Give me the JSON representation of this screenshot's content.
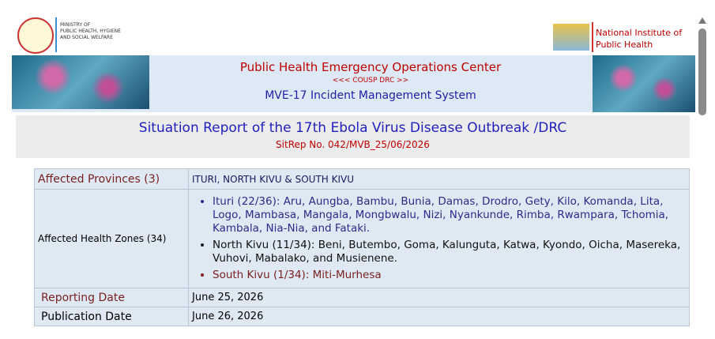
{
  "header": {
    "ministry": [
      "MINISTRY OF",
      "PUBLIC HEALTH, HYGIENE",
      "AND SOCIAL WELFARE"
    ],
    "institute": [
      "National Institute of",
      "Public Health"
    ]
  },
  "banner": {
    "title": "Public Health Emergency Operations Center",
    "subtitle": "<<< COUSP DRC >>",
    "system": "MVE-17 Incident Management System"
  },
  "report": {
    "title": "Situation Report of the 17th Ebola Virus Disease Outbreak /DRC",
    "number": "SitRep No. 042/MVB_25/06/2026"
  },
  "table": {
    "rows": [
      {
        "label": "Affected Provinces (3)",
        "value": "ITURI, NORTH KIVU & SOUTH KIVU"
      },
      {
        "label": "Affected Health Zones (34)",
        "items": [
          "Ituri (22/36): Aru, Aungba, Bambu, Bunia, Damas, Drodro, Gety, Kilo, Komanda, Lita, Logo, Mambasa, Mangala, Mongbwalu, Nizi, Nyankunde, Rimba, Rwampara, Tchomia, Kambala, Nia-Nia, and Fataki.",
          "North Kivu (11/34): Beni, Butembo, Goma, Kalunguta, Katwa, Kyondo, Oicha, Masereka, Vuhovi, Mabalako, and Musienene.",
          "South Kivu (1/34): Miti-Murhesa"
        ]
      },
      {
        "label": "Reporting Date",
        "value": "June 25, 2026"
      },
      {
        "label": "Publication Date",
        "value": "June 26, 2026"
      }
    ]
  }
}
